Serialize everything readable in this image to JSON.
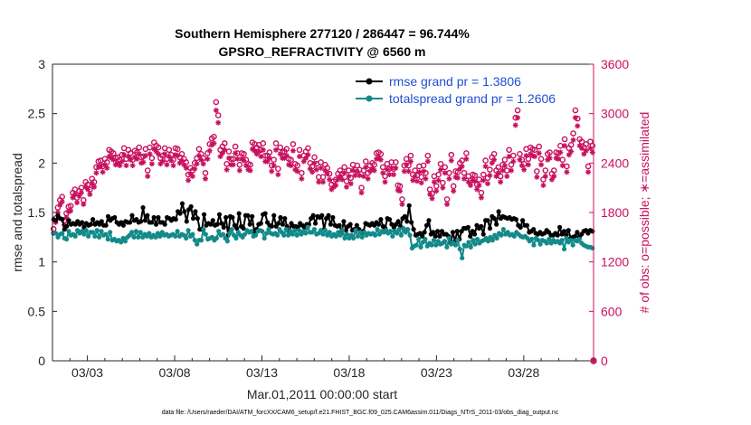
{
  "chart_data": {
    "type": "line",
    "title_line1": "Southern Hemisphere 277120 / 286447 = 96.744%",
    "title_line2": "GPSRO_REFRACTIVITY @ 6560 m",
    "xlabel": "Mar.01,2011 00:00:00 start",
    "ylabel_left": "rmse and totalspread",
    "ylabel_right": "# of obs: o=possible; ∗=assimilated",
    "footnote": "data file: /Users/raeder/DAI/ATM_forcXX/CAM6_setup/f.e21.FHIST_BGC.f09_025.CAM6assim.011/Diags_NTrS_2011-03/obs_diag_output.nc",
    "x_ticks": [
      "03/03",
      "03/08",
      "03/13",
      "03/18",
      "03/23",
      "03/28"
    ],
    "x_tick_days": [
      3,
      8,
      13,
      18,
      23,
      28
    ],
    "xlim_days": [
      1,
      32
    ],
    "ylim_left": [
      0,
      3
    ],
    "y_ticks_left": [
      "0",
      "0.5",
      "1",
      "1.5",
      "2",
      "2.5",
      "3"
    ],
    "ylim_right": [
      0,
      3600
    ],
    "y_ticks_right": [
      "0",
      "600",
      "1200",
      "1800",
      "2400",
      "3000",
      "3600"
    ],
    "grid": false,
    "legend_position": "top-right",
    "colors": {
      "rmse": "#000000",
      "spread": "#138a8a",
      "obs": "#c8105e",
      "legend_text": "#1f4fd6"
    },
    "series": [
      {
        "name": "rmse grand pr = 1.3806",
        "axis": "left",
        "marker": "dot",
        "values": [
          1.43,
          1.42,
          1.47,
          1.44,
          1.43,
          1.33,
          1.36,
          1.42,
          1.38,
          1.39,
          1.38,
          1.41,
          1.38,
          1.4,
          1.35,
          1.39,
          1.37,
          1.38,
          1.43,
          1.38,
          1.4,
          1.38,
          1.41,
          1.37,
          1.37,
          1.46,
          1.42,
          1.44,
          1.45,
          1.4,
          1.38,
          1.4,
          1.37,
          1.41,
          1.4,
          1.4,
          1.47,
          1.42,
          1.43,
          1.4,
          1.41,
          1.55,
          1.42,
          1.47,
          1.4,
          1.4,
          1.45,
          1.38,
          1.45,
          1.4,
          1.4,
          1.38,
          1.45,
          1.44,
          1.42,
          1.44,
          1.43,
          1.51,
          1.49,
          1.59,
          1.51,
          1.41,
          1.53,
          1.56,
          1.44,
          1.51,
          1.44,
          1.33,
          1.33,
          1.48,
          1.37,
          1.39,
          1.38,
          1.42,
          1.37,
          1.38,
          1.48,
          1.39,
          1.35,
          1.45,
          1.27,
          1.46,
          1.45,
          1.37,
          1.34,
          1.49,
          1.36,
          1.34,
          1.47,
          1.47,
          1.38,
          1.46,
          1.31,
          1.33,
          1.38,
          1.39,
          1.48,
          1.49,
          1.4,
          1.37,
          1.36,
          1.47,
          1.36,
          1.39,
          1.45,
          1.38,
          1.44,
          1.36,
          1.3,
          1.39,
          1.36,
          1.36,
          1.35,
          1.39,
          1.37,
          1.35,
          1.38,
          1.38,
          1.44,
          1.47,
          1.39,
          1.46,
          1.45,
          1.47,
          1.33,
          1.44,
          1.47,
          1.38,
          1.45,
          1.37,
          1.36,
          1.37,
          1.3,
          1.41,
          1.32,
          1.36,
          1.38,
          1.32,
          1.33,
          1.37,
          1.33,
          1.3,
          1.31,
          1.39,
          1.38,
          1.37,
          1.39,
          1.37,
          1.4,
          1.38,
          1.43,
          1.36,
          1.34,
          1.44,
          1.43,
          1.38,
          1.35,
          1.38,
          1.41,
          1.36,
          1.44,
          1.46,
          1.41,
          1.57,
          1.4,
          1.33,
          1.27,
          1.28,
          1.29,
          1.26,
          1.3,
          1.37,
          1.42,
          1.28,
          1.3,
          1.26,
          1.31,
          1.26,
          1.31,
          1.28,
          1.28,
          1.26,
          1.19,
          1.3,
          1.21,
          1.31,
          1.23,
          1.31,
          1.34,
          1.34,
          1.35,
          1.26,
          1.31,
          1.28,
          1.37,
          1.34,
          1.36,
          1.28,
          1.42,
          1.42,
          1.34,
          1.46,
          1.44,
          1.38,
          1.51,
          1.44,
          1.46,
          1.45,
          1.44,
          1.45,
          1.43,
          1.44,
          1.43,
          1.37,
          1.35,
          1.42,
          1.37,
          1.37,
          1.3,
          1.31,
          1.33,
          1.29,
          1.28,
          1.3,
          1.28,
          1.29,
          1.32,
          1.3,
          1.27,
          1.27,
          1.29,
          1.27,
          1.35,
          1.28,
          1.31,
          1.27,
          1.32,
          1.24,
          1.25,
          1.26,
          1.3,
          1.25,
          1.28,
          1.31,
          1.32,
          1.29,
          1.32,
          1.31
        ]
      },
      {
        "name": "totalspread grand pr = 1.2606",
        "axis": "left",
        "marker": "dot",
        "values": [
          1.29,
          1.29,
          1.25,
          1.28,
          1.29,
          1.24,
          1.23,
          1.31,
          1.27,
          1.28,
          1.26,
          1.32,
          1.29,
          1.31,
          1.28,
          1.32,
          1.26,
          1.3,
          1.3,
          1.26,
          1.32,
          1.25,
          1.31,
          1.27,
          1.28,
          1.23,
          1.3,
          1.22,
          1.23,
          1.21,
          1.22,
          1.2,
          1.24,
          1.21,
          1.25,
          1.27,
          1.3,
          1.25,
          1.31,
          1.25,
          1.3,
          1.25,
          1.28,
          1.26,
          1.29,
          1.25,
          1.27,
          1.25,
          1.29,
          1.26,
          1.3,
          1.27,
          1.28,
          1.26,
          1.27,
          1.28,
          1.26,
          1.31,
          1.26,
          1.28,
          1.27,
          1.24,
          1.32,
          1.26,
          1.28,
          1.22,
          1.18,
          1.22,
          1.22,
          1.33,
          1.28,
          1.23,
          1.24,
          1.25,
          1.22,
          1.24,
          1.31,
          1.27,
          1.28,
          1.24,
          1.21,
          1.29,
          1.33,
          1.27,
          1.24,
          1.3,
          1.27,
          1.25,
          1.28,
          1.32,
          1.3,
          1.31,
          1.26,
          1.27,
          1.31,
          1.32,
          1.31,
          1.24,
          1.29,
          1.33,
          1.29,
          1.28,
          1.29,
          1.27,
          1.33,
          1.3,
          1.27,
          1.33,
          1.27,
          1.31,
          1.28,
          1.32,
          1.27,
          1.32,
          1.28,
          1.31,
          1.29,
          1.35,
          1.3,
          1.3,
          1.33,
          1.28,
          1.29,
          1.32,
          1.28,
          1.32,
          1.27,
          1.3,
          1.26,
          1.28,
          1.26,
          1.3,
          1.27,
          1.32,
          1.24,
          1.28,
          1.24,
          1.27,
          1.24,
          1.32,
          1.26,
          1.3,
          1.25,
          1.3,
          1.27,
          1.29,
          1.28,
          1.29,
          1.27,
          1.33,
          1.28,
          1.31,
          1.3,
          1.32,
          1.29,
          1.31,
          1.26,
          1.31,
          1.29,
          1.33,
          1.27,
          1.34,
          1.3,
          1.33,
          1.27,
          1.14,
          1.16,
          1.17,
          1.23,
          1.15,
          1.2,
          1.23,
          1.16,
          1.19,
          1.17,
          1.22,
          1.17,
          1.21,
          1.18,
          1.19,
          1.21,
          1.15,
          1.24,
          1.18,
          1.19,
          1.17,
          1.22,
          1.13,
          1.04,
          1.17,
          1.16,
          1.2,
          1.15,
          1.22,
          1.18,
          1.23,
          1.19,
          1.21,
          1.22,
          1.24,
          1.21,
          1.25,
          1.22,
          1.27,
          1.24,
          1.29,
          1.27,
          1.33,
          1.28,
          1.3,
          1.27,
          1.28,
          1.26,
          1.3,
          1.28,
          1.26,
          1.25,
          1.26,
          1.24,
          1.21,
          1.23,
          1.17,
          1.24,
          1.22,
          1.18,
          1.22,
          1.21,
          1.19,
          1.23,
          1.19,
          1.22,
          1.2,
          1.21,
          1.19,
          1.22,
          1.13,
          1.24,
          1.2,
          1.22,
          1.17,
          1.22,
          1.21,
          1.23,
          1.19,
          1.17,
          1.16,
          1.15,
          1.15,
          1.14
        ]
      },
      {
        "name": "possible",
        "axis": "right",
        "marker": "circle",
        "values": [
          1600,
          1730,
          1860,
          1950,
          1990,
          1700,
          1790,
          1870,
          1880,
          2040,
          2080,
          1980,
          2060,
          2100,
          1950,
          2170,
          2140,
          2080,
          2210,
          2170,
          2350,
          2420,
          2430,
          2360,
          2450,
          2410,
          2560,
          2540,
          2520,
          2460,
          2470,
          2440,
          2500,
          2580,
          2450,
          2560,
          2520,
          2440,
          2550,
          2530,
          2590,
          2470,
          2480,
          2570,
          2310,
          2590,
          2460,
          2650,
          2610,
          2590,
          2460,
          2490,
          2580,
          2450,
          2560,
          2500,
          2440,
          2580,
          2570,
          2470,
          2510,
          2450,
          2410,
          2260,
          2340,
          2310,
          2400,
          2460,
          2570,
          2510,
          2460,
          2280,
          2520,
          2630,
          2700,
          2720,
          3140,
          2980,
          2560,
          2600,
          2640,
          2390,
          2540,
          2450,
          2450,
          2600,
          2520,
          2380,
          2520,
          2510,
          2440,
          2390,
          2380,
          2650,
          2630,
          2590,
          2620,
          2560,
          2640,
          2490,
          2490,
          2530,
          2370,
          2440,
          2640,
          2330,
          2590,
          2530,
          2540,
          2570,
          2450,
          2440,
          2630,
          2390,
          2370,
          2560,
          2280,
          2490,
          2540,
          2580,
          2400,
          2360,
          2470,
          2390,
          2230,
          2410,
          2230,
          2380,
          2340,
          2270,
          2140,
          2180,
          2200,
          2270,
          2310,
          2270,
          2350,
          2180,
          2310,
          2220,
          2380,
          2320,
          2370,
          2320,
          2100,
          2310,
          2420,
          2280,
          2370,
          2400,
          2380,
          2520,
          2530,
          2510,
          2350,
          2240,
          2390,
          2330,
          2410,
          2330,
          2410,
          2130,
          2120,
          1960,
          2370,
          2450,
          2370,
          2490,
          2260,
          2310,
          2250,
          2360,
          2230,
          2370,
          2280,
          2490,
          2080,
          2030,
          2240,
          2120,
          2260,
          2390,
          2160,
          2350,
          1960,
          2280,
          2500,
          2120,
          2300,
          2290,
          2400,
          2430,
          2280,
          2520,
          2240,
          2190,
          2260,
          2250,
          2140,
          2200,
          2040,
          2260,
          2430,
          2220,
          2320,
          2470,
          2510,
          2310,
          2350,
          2240,
          2380,
          2440,
          2310,
          2560,
          2380,
          2490,
          2950,
          3040,
          2510,
          2440,
          2390,
          2570,
          2450,
          2590,
          2570,
          2560,
          2300,
          2600,
          2450,
          2200,
          2310,
          2510,
          2530,
          2270,
          2310,
          2530,
          2520,
          2610,
          2440,
          2690,
          2360,
          2580,
          2620,
          2760,
          3040,
          2940,
          2690,
          2660,
          2590,
          2630,
          2360,
          2660,
          2610
        ]
      },
      {
        "name": "assimilated",
        "axis": "right",
        "marker": "asterisk",
        "values": [
          1550,
          1680,
          1800,
          1890,
          1930,
          1650,
          1740,
          1810,
          1820,
          1980,
          2020,
          1920,
          2000,
          2040,
          1900,
          2110,
          2080,
          2020,
          2150,
          2110,
          2280,
          2350,
          2360,
          2290,
          2380,
          2340,
          2480,
          2460,
          2440,
          2380,
          2400,
          2370,
          2420,
          2500,
          2370,
          2480,
          2440,
          2370,
          2470,
          2450,
          2510,
          2400,
          2410,
          2490,
          2240,
          2510,
          2390,
          2570,
          2540,
          2510,
          2390,
          2420,
          2510,
          2380,
          2480,
          2430,
          2370,
          2500,
          2490,
          2400,
          2430,
          2380,
          2340,
          2190,
          2270,
          2240,
          2330,
          2390,
          2490,
          2440,
          2390,
          2210,
          2450,
          2550,
          2620,
          2640,
          3040,
          2890,
          2480,
          2520,
          2560,
          2320,
          2460,
          2380,
          2380,
          2520,
          2450,
          2310,
          2450,
          2430,
          2370,
          2320,
          2310,
          2570,
          2550,
          2510,
          2540,
          2480,
          2560,
          2420,
          2420,
          2460,
          2300,
          2370,
          2560,
          2260,
          2510,
          2460,
          2460,
          2490,
          2380,
          2370,
          2550,
          2320,
          2300,
          2480,
          2210,
          2420,
          2460,
          2500,
          2330,
          2290,
          2400,
          2320,
          2170,
          2340,
          2170,
          2310,
          2270,
          2200,
          2080,
          2110,
          2130,
          2200,
          2240,
          2200,
          2280,
          2110,
          2240,
          2150,
          2310,
          2250,
          2300,
          2250,
          2040,
          2240,
          2350,
          2210,
          2300,
          2330,
          2310,
          2450,
          2460,
          2440,
          2280,
          2170,
          2320,
          2260,
          2340,
          2260,
          2340,
          2070,
          2060,
          1900,
          2300,
          2380,
          2300,
          2420,
          2190,
          2240,
          2180,
          2290,
          2160,
          2300,
          2210,
          2420,
          2020,
          1970,
          2170,
          2060,
          2190,
          2320,
          2100,
          2280,
          1900,
          2210,
          2430,
          2060,
          2230,
          2220,
          2330,
          2360,
          2210,
          2450,
          2170,
          2130,
          2190,
          2180,
          2080,
          2130,
          1980,
          2190,
          2360,
          2150,
          2250,
          2400,
          2440,
          2240,
          2280,
          2170,
          2310,
          2370,
          2240,
          2480,
          2310,
          2420,
          2860,
          2950,
          2440,
          2370,
          2320,
          2490,
          2380,
          2510,
          2490,
          2480,
          2230,
          2520,
          2380,
          2130,
          2240,
          2440,
          2460,
          2200,
          2240,
          2460,
          2450,
          2530,
          2370,
          2610,
          2290,
          2500,
          2540,
          2680,
          2950,
          2850,
          2610,
          2580,
          2510,
          2550,
          2290,
          2580,
          2530
        ]
      }
    ],
    "extra_obs_count": {
      "x_day": 32,
      "possible": 0,
      "assimilated": 0
    }
  }
}
